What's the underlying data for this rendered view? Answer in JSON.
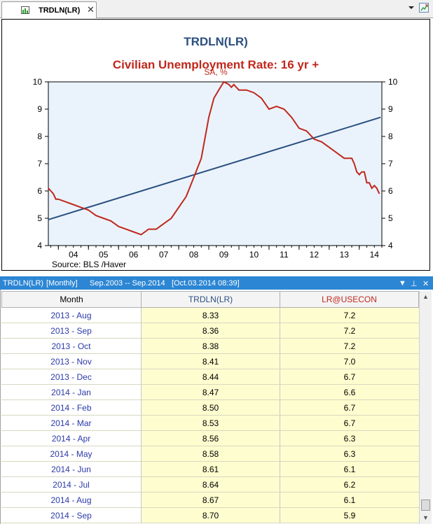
{
  "tab": {
    "label": "TRDLN(LR)",
    "close": "✕"
  },
  "chart": {
    "title": "TRDLN(LR)",
    "subtitle": "Civilian Unemployment Rate: 16 yr +",
    "subtitle2": "SA, %",
    "source": "Source:  BLS /Haver"
  },
  "chart_data": {
    "type": "line",
    "title": "TRDLN(LR)",
    "subtitle": "Civilian Unemployment Rate: 16 yr +",
    "ylim": [
      4,
      10
    ],
    "y_ticks": [
      4,
      5,
      6,
      7,
      8,
      9,
      10
    ],
    "x_tick_labels": [
      "04",
      "05",
      "06",
      "07",
      "08",
      "09",
      "10",
      "11",
      "12",
      "13",
      "14"
    ],
    "x_range": [
      2003.667,
      2014.75
    ],
    "grid": false,
    "series": [
      {
        "name": "TRDLN(LR)",
        "color": "#2b4f7f",
        "x": [
          2003.667,
          2014.708
        ],
        "values": [
          4.95,
          8.7
        ]
      },
      {
        "name": "LR@USECON",
        "color": "#c0281c",
        "x": [
          2003.667,
          2003.75,
          2003.833,
          2003.917,
          2004.0,
          2004.25,
          2004.5,
          2004.75,
          2005.0,
          2005.25,
          2005.5,
          2005.75,
          2006.0,
          2006.25,
          2006.5,
          2006.75,
          2007.0,
          2007.25,
          2007.5,
          2007.75,
          2008.0,
          2008.25,
          2008.5,
          2008.75,
          2009.0,
          2009.17,
          2009.33,
          2009.5,
          2009.67,
          2009.75,
          2009.83,
          2010.0,
          2010.25,
          2010.5,
          2010.75,
          2011.0,
          2011.25,
          2011.5,
          2011.75,
          2012.0,
          2012.25,
          2012.5,
          2012.75,
          2013.0,
          2013.25,
          2013.5,
          2013.583,
          2013.667,
          2013.75,
          2013.833,
          2013.917,
          2014.0,
          2014.083,
          2014.167,
          2014.25,
          2014.333,
          2014.417,
          2014.5,
          2014.583,
          2014.667
        ],
        "values": [
          6.1,
          6.0,
          5.9,
          5.7,
          5.7,
          5.6,
          5.5,
          5.4,
          5.3,
          5.1,
          5.0,
          4.9,
          4.7,
          4.6,
          4.5,
          4.4,
          4.6,
          4.6,
          4.8,
          5.0,
          5.4,
          5.8,
          6.5,
          7.2,
          8.7,
          9.4,
          9.7,
          10.0,
          9.9,
          9.8,
          9.9,
          9.7,
          9.7,
          9.6,
          9.4,
          9.0,
          9.1,
          9.0,
          8.7,
          8.3,
          8.2,
          7.9,
          7.8,
          7.6,
          7.4,
          7.2,
          7.2,
          7.2,
          7.2,
          7.0,
          6.7,
          6.6,
          6.7,
          6.7,
          6.3,
          6.3,
          6.1,
          6.2,
          6.1,
          5.9
        ]
      }
    ]
  },
  "data_header": {
    "series": "TRDLN(LR)",
    "freq": "[Monthly]",
    "range": "Sep.2003 -- Sep.2014",
    "stamp": "[Oct.03.2014 08:39]"
  },
  "table": {
    "columns": [
      "Month",
      "TRDLN(LR)",
      "LR@USECON"
    ],
    "rows": [
      [
        "2013 - Aug",
        "8.33",
        "7.2"
      ],
      [
        "2013 - Sep",
        "8.36",
        "7.2"
      ],
      [
        "2013 - Oct",
        "8.38",
        "7.2"
      ],
      [
        "2013 - Nov",
        "8.41",
        "7.0"
      ],
      [
        "2013 - Dec",
        "8.44",
        "6.7"
      ],
      [
        "2014 - Jan",
        "8.47",
        "6.6"
      ],
      [
        "2014 - Feb",
        "8.50",
        "6.7"
      ],
      [
        "2014 - Mar",
        "8.53",
        "6.7"
      ],
      [
        "2014 - Apr",
        "8.56",
        "6.3"
      ],
      [
        "2014 - May",
        "8.58",
        "6.3"
      ],
      [
        "2014 - Jun",
        "8.61",
        "6.1"
      ],
      [
        "2014 - Jul",
        "8.64",
        "6.2"
      ],
      [
        "2014 - Aug",
        "8.67",
        "6.1"
      ],
      [
        "2014 - Sep",
        "8.70",
        "5.9"
      ]
    ]
  }
}
